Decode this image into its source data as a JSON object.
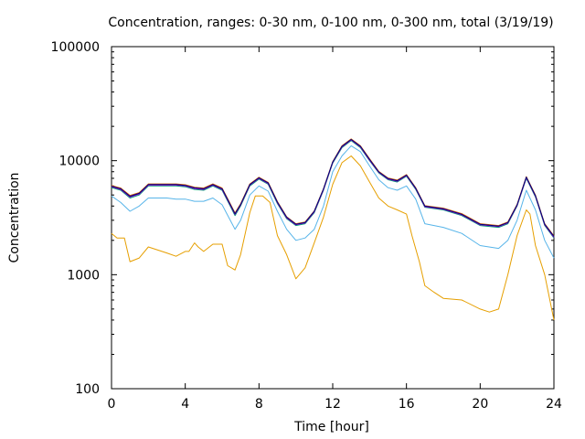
{
  "chart_data": {
    "type": "line",
    "title": "Concentration, ranges: 0-30 nm, 0-100 nm, 0-300 nm, total (3/19/19)",
    "xlabel": "Time [hour]",
    "ylabel": "Concentration",
    "xlim": [
      0,
      24
    ],
    "ylim": [
      100,
      100000
    ],
    "yscale": "log",
    "xticks": [
      0,
      4,
      8,
      12,
      16,
      20,
      24
    ],
    "yticks": [
      100,
      1000,
      10000,
      100000
    ],
    "ytick_labels": [
      "100",
      "1000",
      "10000",
      "100000"
    ],
    "grid": false,
    "legend": "none",
    "series": [
      {
        "color": "#e69f00",
        "x": [
          0,
          0.3,
          0.5,
          0.7,
          1.0,
          1.5,
          2.0,
          3.0,
          3.5,
          4.0,
          4.2,
          4.5,
          4.7,
          5.0,
          5.5,
          6.0,
          6.3,
          6.7,
          7.0,
          7.5,
          7.8,
          8.2,
          8.6,
          9.0,
          9.5,
          10.0,
          10.5,
          11.0,
          11.5,
          12.0,
          12.5,
          13.0,
          13.5,
          14.0,
          14.5,
          15.0,
          15.5,
          16.0,
          16.3,
          16.7,
          17.0,
          17.5,
          18.0,
          19.0,
          20.0,
          20.5,
          21.0,
          21.5,
          22.0,
          22.5,
          22.7,
          23.0,
          23.5,
          24.0
        ],
        "y": [
          2300,
          2100,
          2100,
          2100,
          1300,
          1400,
          1750,
          1550,
          1450,
          1600,
          1600,
          1900,
          1750,
          1600,
          1850,
          1850,
          1200,
          1100,
          1500,
          3500,
          4900,
          4900,
          4300,
          2200,
          1500,
          920,
          1150,
          1900,
          3200,
          6200,
          9600,
          11000,
          9000,
          6500,
          4700,
          4000,
          3700,
          3400,
          2200,
          1300,
          800,
          700,
          620,
          600,
          500,
          470,
          500,
          1000,
          2200,
          3700,
          3400,
          1800,
          1000,
          400
        ]
      },
      {
        "color": "#56b4e9",
        "x": [
          0,
          0.5,
          1.0,
          1.5,
          2.0,
          3.0,
          3.5,
          4.0,
          4.5,
          5.0,
          5.5,
          6.0,
          6.7,
          7.0,
          7.5,
          8.0,
          8.5,
          9.0,
          9.5,
          10.0,
          10.5,
          11.0,
          11.5,
          12.0,
          12.5,
          13.0,
          13.5,
          14.0,
          14.5,
          15.0,
          15.5,
          16.0,
          16.5,
          17.0,
          18.0,
          19.0,
          20.0,
          21.0,
          21.5,
          22.0,
          22.5,
          23.0,
          23.5,
          24.0
        ],
        "y": [
          4900,
          4300,
          3600,
          4000,
          4700,
          4700,
          4600,
          4600,
          4400,
          4400,
          4700,
          4100,
          2500,
          3000,
          5000,
          6000,
          5400,
          3600,
          2500,
          2000,
          2100,
          2500,
          4000,
          8000,
          11000,
          13500,
          12000,
          9000,
          6800,
          5800,
          5500,
          6000,
          4600,
          2800,
          2600,
          2300,
          1800,
          1700,
          2000,
          3000,
          5500,
          3700,
          2000,
          1400
        ]
      },
      {
        "color": "#009e73",
        "x": [
          0,
          0.5,
          1.0,
          1.5,
          2.0,
          3.0,
          3.5,
          4.0,
          4.5,
          5.0,
          5.5,
          6.0,
          6.7,
          7.0,
          7.5,
          8.0,
          8.5,
          9.0,
          9.5,
          10.0,
          10.5,
          11.0,
          11.5,
          12.0,
          12.5,
          13.0,
          13.5,
          14.0,
          14.5,
          15.0,
          15.5,
          16.0,
          16.5,
          17.0,
          18.0,
          19.0,
          20.0,
          21.0,
          21.5,
          22.0,
          22.5,
          23.0,
          23.5,
          24.0
        ],
        "y": [
          5800,
          5500,
          4700,
          5000,
          6000,
          6000,
          6000,
          5900,
          5600,
          5500,
          6000,
          5500,
          3300,
          4000,
          6000,
          6900,
          6200,
          4200,
          3100,
          2700,
          2800,
          3500,
          5500,
          9500,
          13000,
          15000,
          13000,
          10000,
          7800,
          6800,
          6500,
          7300,
          5600,
          3900,
          3700,
          3300,
          2700,
          2600,
          2800,
          4000,
          7000,
          4800,
          2700,
          2100
        ]
      },
      {
        "color": "#f0e442",
        "x": [
          0,
          0.5,
          1.0,
          1.5,
          2.0,
          3.0,
          3.5,
          4.0,
          4.5,
          5.0,
          5.5,
          6.0,
          6.7,
          7.0,
          7.5,
          8.0,
          8.5,
          9.0,
          9.5,
          10.0,
          10.5,
          11.0,
          11.5,
          12.0,
          12.5,
          13.0,
          13.5,
          14.0,
          14.5,
          15.0,
          15.5,
          16.0,
          16.5,
          17.0,
          18.0,
          19.0,
          20.0,
          21.0,
          21.5,
          22.0,
          22.5,
          23.0,
          23.5,
          24.0
        ],
        "y": [
          5950,
          5650,
          4850,
          5150,
          6150,
          6150,
          6150,
          6050,
          5750,
          5650,
          6150,
          5650,
          3400,
          4100,
          6150,
          7050,
          6350,
          4300,
          3180,
          2760,
          2860,
          3580,
          5620,
          9700,
          13300,
          15300,
          13300,
          10200,
          7950,
          6950,
          6650,
          7450,
          5720,
          3980,
          3780,
          3370,
          2760,
          2660,
          2860,
          4080,
          7150,
          4900,
          2760,
          2150
        ]
      },
      {
        "color": "#0072b2",
        "x": [
          0,
          0.5,
          1.0,
          1.5,
          2.0,
          3.0,
          3.5,
          4.0,
          4.5,
          5.0,
          5.5,
          6.0,
          6.7,
          7.0,
          7.5,
          8.0,
          8.5,
          9.0,
          9.5,
          10.0,
          10.5,
          11.0,
          11.5,
          12.0,
          12.5,
          13.0,
          13.5,
          14.0,
          14.5,
          15.0,
          15.5,
          16.0,
          16.5,
          17.0,
          18.0,
          19.0,
          20.0,
          21.0,
          21.5,
          22.0,
          22.5,
          23.0,
          23.5,
          24.0
        ],
        "y": [
          6000,
          5700,
          4900,
          5200,
          6200,
          6200,
          6200,
          6100,
          5800,
          5700,
          6200,
          5700,
          3450,
          4150,
          6200,
          7100,
          6400,
          4350,
          3200,
          2780,
          2880,
          3600,
          5650,
          9750,
          13400,
          15400,
          13400,
          10300,
          8000,
          7000,
          6700,
          7500,
          5750,
          4000,
          3800,
          3400,
          2780,
          2680,
          2880,
          4100,
          7200,
          4950,
          2780,
          2170
        ]
      },
      {
        "color": "#d55e00",
        "x": [
          0,
          0.5,
          1.0,
          1.5,
          2.0,
          3.0,
          3.5,
          4.0,
          4.5,
          5.0,
          5.5,
          6.0,
          6.7,
          7.0,
          7.5,
          8.0,
          8.5,
          9.0,
          9.5,
          10.0,
          10.5,
          11.0,
          11.5,
          12.0,
          12.5,
          13.0,
          13.5,
          14.0,
          14.5,
          15.0,
          15.5,
          16.0,
          16.5,
          17.0,
          18.0,
          19.0,
          20.0,
          21.0,
          21.5,
          22.0,
          22.5,
          23.0,
          23.5,
          24.0
        ],
        "y": [
          6050,
          5750,
          4950,
          5250,
          6250,
          6250,
          6250,
          6150,
          5850,
          5750,
          6250,
          5750,
          3480,
          4180,
          6250,
          7150,
          6450,
          4380,
          3220,
          2800,
          2900,
          3620,
          5680,
          9800,
          13500,
          15500,
          13500,
          10400,
          8050,
          7050,
          6750,
          7550,
          5800,
          4030,
          3830,
          3430,
          2800,
          2700,
          2900,
          4130,
          7250,
          4980,
          2800,
          2190
        ]
      },
      {
        "color": "#9400d3",
        "x": [
          0,
          0.5,
          1.0,
          1.5,
          2.0,
          3.0,
          3.5,
          4.0,
          4.5,
          5.0,
          5.5,
          6.0,
          6.7,
          7.0,
          7.5,
          8.0,
          8.5,
          9.0,
          9.5,
          10.0,
          10.5,
          11.0,
          11.5,
          12.0,
          12.5,
          13.0,
          13.5,
          14.0,
          14.5,
          15.0,
          15.5,
          16.0,
          16.5,
          17.0,
          18.0,
          19.0,
          20.0,
          21.0,
          21.5,
          22.0,
          22.5,
          23.0,
          23.5,
          24.0
        ],
        "y": [
          5900,
          5600,
          4800,
          5100,
          6100,
          6100,
          6100,
          6000,
          5700,
          5600,
          6100,
          5600,
          3380,
          4080,
          6100,
          7000,
          6300,
          4270,
          3150,
          2740,
          2840,
          3550,
          5580,
          9650,
          13200,
          15200,
          13200,
          10100,
          7900,
          6900,
          6600,
          7400,
          5680,
          3950,
          3750,
          3350,
          2740,
          2640,
          2840,
          4050,
          7100,
          4870,
          2740,
          2130
        ]
      },
      {
        "color": "#000080",
        "x": [
          0,
          0.5,
          1.0,
          1.5,
          2.0,
          3.0,
          3.5,
          4.0,
          4.5,
          5.0,
          5.5,
          6.0,
          6.7,
          7.0,
          7.5,
          8.0,
          8.5,
          9.0,
          9.5,
          10.0,
          10.5,
          11.0,
          11.5,
          12.0,
          12.5,
          13.0,
          13.5,
          14.0,
          14.5,
          15.0,
          15.5,
          16.0,
          16.5,
          17.0,
          18.0,
          19.0,
          20.0,
          21.0,
          21.5,
          22.0,
          22.5,
          23.0,
          23.5,
          24.0
        ],
        "y": [
          5970,
          5670,
          4870,
          5170,
          6170,
          6170,
          6170,
          6070,
          5770,
          5670,
          6170,
          5670,
          3420,
          4120,
          6170,
          7070,
          6370,
          4320,
          3190,
          2770,
          2870,
          3590,
          5640,
          9720,
          13350,
          15350,
          13350,
          10250,
          7970,
          6970,
          6670,
          7470,
          5730,
          3990,
          3790,
          3380,
          2770,
          2670,
          2870,
          4090,
          7170,
          4920,
          2770,
          2160
        ]
      }
    ]
  }
}
